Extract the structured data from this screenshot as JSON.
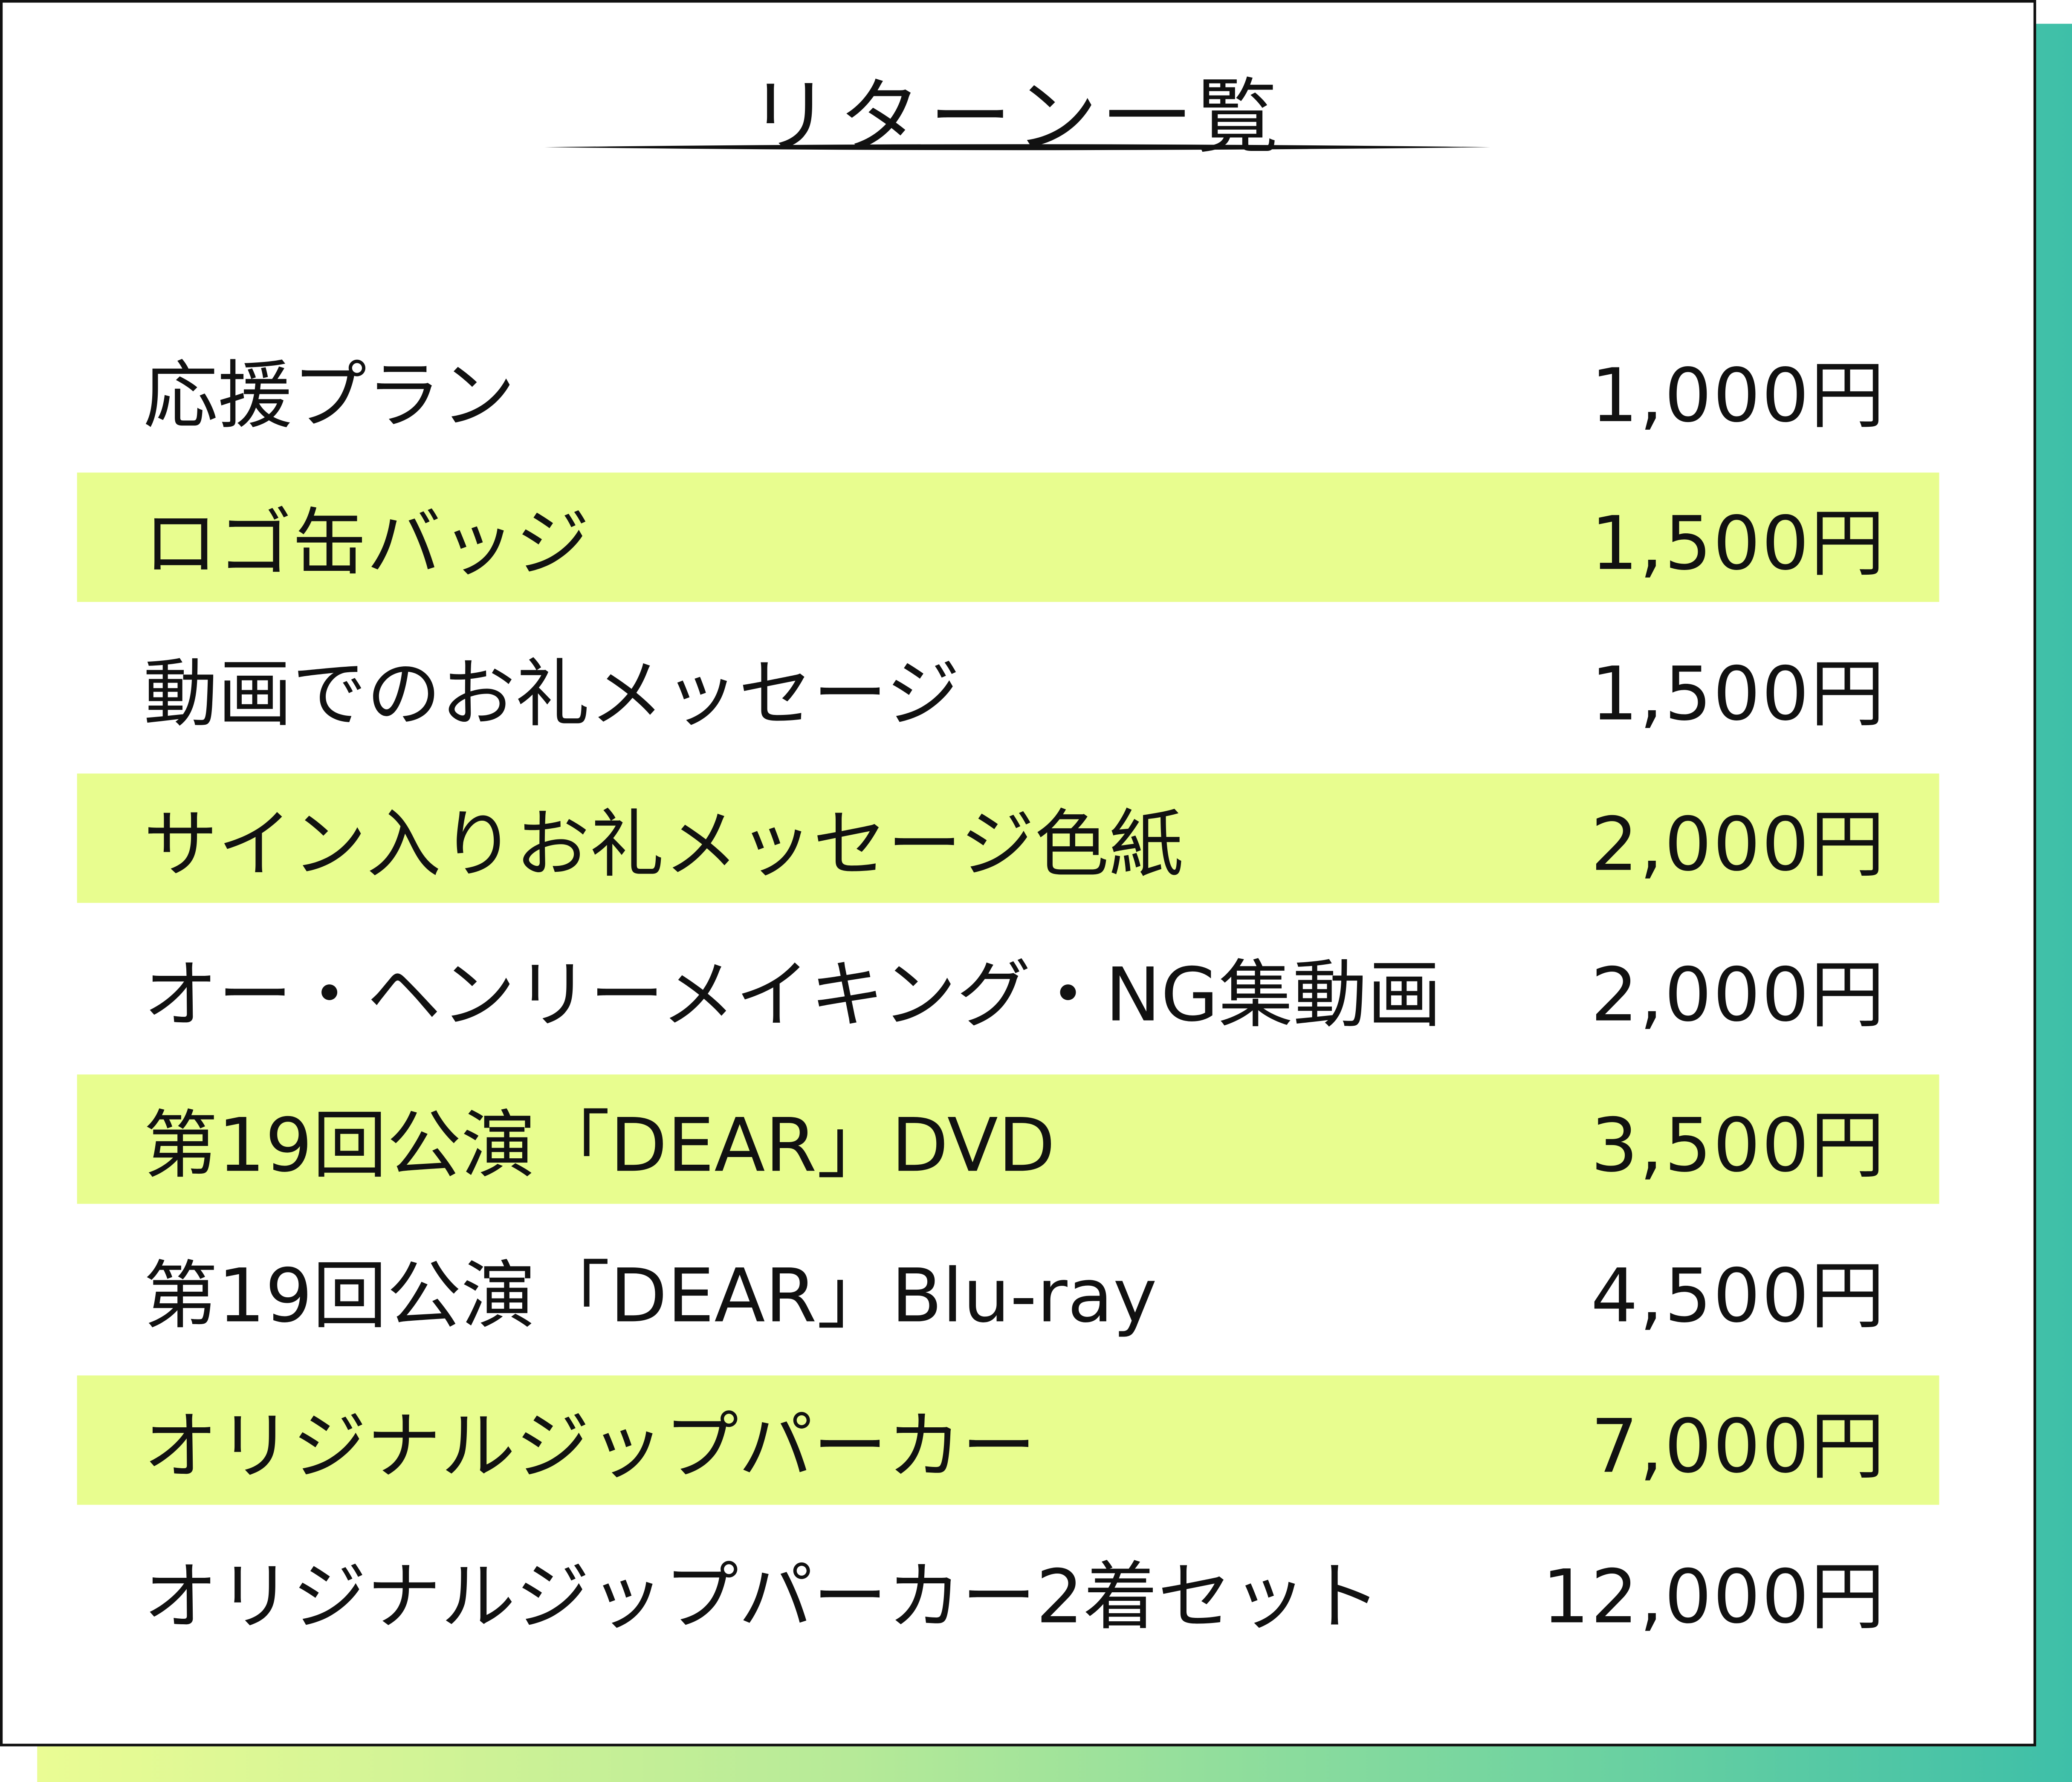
{
  "title": "リターン一覧",
  "colors": {
    "highlight": "#e8fd8f",
    "shadow_start": "#eafc94",
    "shadow_end": "#3ebfa8",
    "text": "#111111"
  },
  "items": [
    {
      "name": "応援プラン",
      "price": "1,000円",
      "highlighted": false
    },
    {
      "name": "ロゴ缶バッジ",
      "price": "1,500円",
      "highlighted": true
    },
    {
      "name": "動画でのお礼メッセージ",
      "price": "1,500円",
      "highlighted": false
    },
    {
      "name": "サイン入りお礼メッセージ色紙",
      "price": "2,000円",
      "highlighted": true
    },
    {
      "name": "オー・ヘンリーメイキング・NG集動画",
      "price": "2,000円",
      "highlighted": false
    },
    {
      "name": "第19回公演「DEAR」DVD",
      "price": "3,500円",
      "highlighted": true
    },
    {
      "name": "第19回公演「DEAR」Blu-ray",
      "price": "4,500円",
      "highlighted": false
    },
    {
      "name": "オリジナルジップパーカー",
      "price": "7,000円",
      "highlighted": true
    },
    {
      "name": "オリジナルジップパーカー2着セット",
      "price": "12,000円",
      "highlighted": false
    }
  ]
}
